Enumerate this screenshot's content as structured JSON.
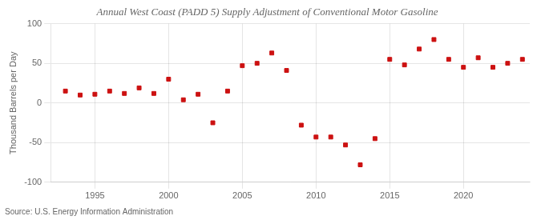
{
  "chart_data": {
    "type": "scatter",
    "title": "Annual West Coast (PADD 5) Supply Adjustment of Conventional Motor Gasoline",
    "ylabel": "Thousand Barrels per Day",
    "annotations": [
      "Source: U.S. Energy Information Administration"
    ],
    "x": [
      1993,
      1994,
      1995,
      1996,
      1997,
      1998,
      1999,
      2000,
      2001,
      2002,
      2003,
      2004,
      2005,
      2006,
      2007,
      2008,
      2009,
      2010,
      2011,
      2012,
      2013,
      2014,
      2015,
      2016,
      2017,
      2018,
      2019,
      2020,
      2021,
      2022,
      2023,
      2024
    ],
    "values": [
      15,
      10,
      11,
      15,
      12,
      19,
      12,
      30,
      4,
      11,
      -25,
      15,
      47,
      50,
      63,
      41,
      -28,
      -43,
      -43,
      -53,
      -78,
      -45,
      55,
      48,
      68,
      80,
      55,
      45,
      57,
      45,
      50,
      55
    ],
    "color": "#cc1111",
    "marker": "square",
    "xlim": [
      1992.0,
      2024.5
    ],
    "xticks": [
      1995,
      2000,
      2005,
      2010,
      2015,
      2020
    ],
    "ylim": [
      -100,
      100
    ],
    "yticks": [
      -100,
      -50,
      0,
      50,
      100
    ],
    "grid": true
  }
}
